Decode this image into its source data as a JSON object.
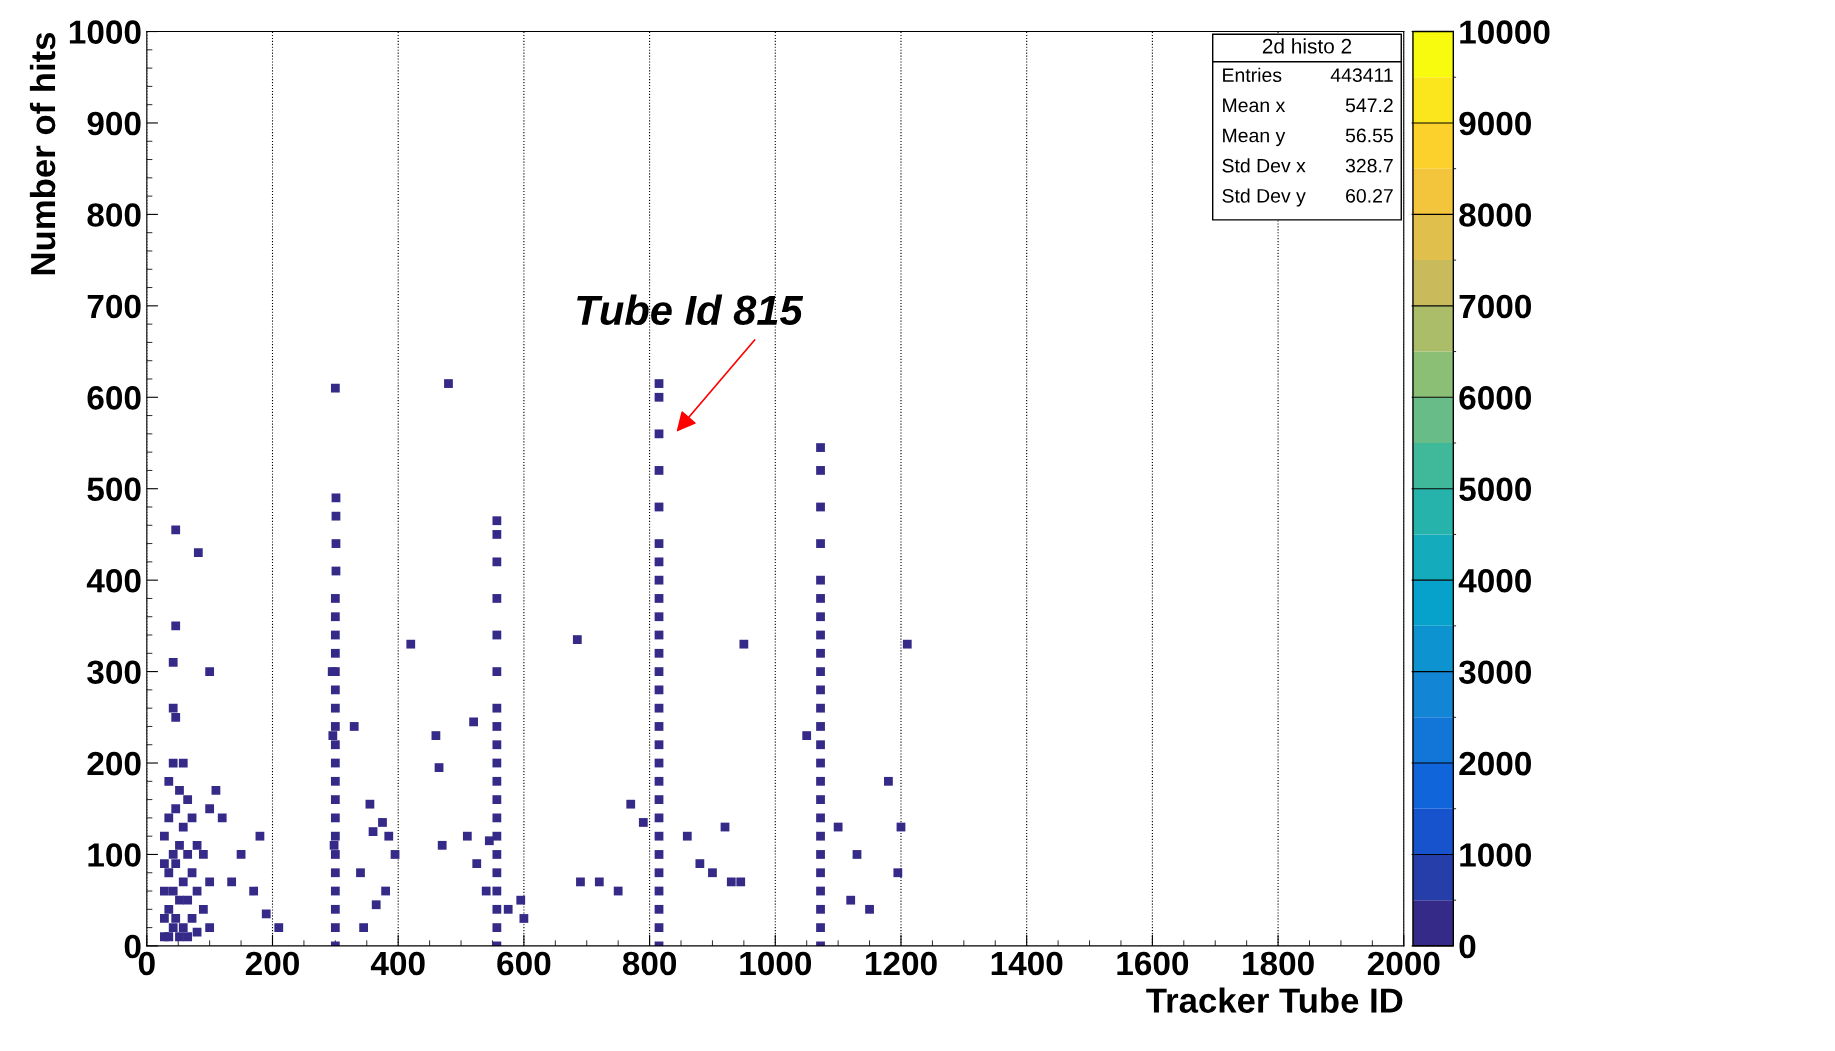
{
  "chart_data": {
    "type": "scatter",
    "xlabel": "Tracker Tube ID",
    "ylabel": "Number of hits",
    "xlim": [
      0,
      2000
    ],
    "xticks": [
      0,
      200,
      400,
      600,
      800,
      1000,
      1200,
      1400,
      1600,
      1800,
      2000
    ],
    "ylim": [
      0,
      1000
    ],
    "yticks": [
      0,
      100,
      200,
      300,
      400,
      500,
      600,
      700,
      800,
      900,
      1000
    ],
    "clim": [
      0,
      10000
    ],
    "cticks": [
      0,
      1000,
      2000,
      3000,
      4000,
      5000,
      6000,
      7000,
      8000,
      9000,
      10000
    ],
    "grid": "x",
    "marker": "square",
    "annotations": [
      "2d histo 2",
      "Entries",
      "443411",
      "Mean x",
      "547.2",
      "Mean y",
      "56.55",
      "Std Dev x",
      "328.7",
      "Std Dev y",
      "60.27",
      "Tube Id 815"
    ],
    "series": [
      {
        "x": [
          300,
          300,
          300,
          300,
          300,
          300,
          300,
          300,
          300,
          300,
          300,
          300,
          300,
          300,
          300,
          300,
          300,
          300,
          300,
          300,
          301,
          301,
          301,
          301
        ],
        "values": [
          0,
          20,
          40,
          60,
          80,
          100,
          120,
          140,
          160,
          180,
          200,
          220,
          240,
          260,
          280,
          300,
          320,
          340,
          360,
          380,
          410,
          440,
          470,
          490
        ]
      },
      {
        "x": [
          557,
          557,
          557,
          557,
          557,
          557,
          557,
          557,
          557,
          557,
          557,
          557,
          557,
          557,
          557,
          557,
          557,
          557,
          557,
          557
        ],
        "values": [
          0,
          20,
          40,
          60,
          80,
          100,
          120,
          140,
          160,
          180,
          200,
          220,
          240,
          260,
          300,
          340,
          380,
          420,
          450,
          465
        ]
      },
      {
        "x": [
          815,
          815,
          815,
          815,
          815,
          815,
          815,
          815,
          815,
          815,
          815,
          815,
          815,
          815,
          815,
          815,
          815,
          815,
          815,
          815,
          815,
          815,
          815,
          815,
          815,
          815,
          815,
          815
        ],
        "values": [
          0,
          20,
          40,
          60,
          80,
          100,
          120,
          140,
          160,
          180,
          200,
          220,
          240,
          260,
          280,
          300,
          320,
          340,
          360,
          380,
          400,
          420,
          440,
          480,
          520,
          560,
          600,
          615
        ]
      },
      {
        "x": [
          1072,
          1072,
          1072,
          1072,
          1072,
          1072,
          1072,
          1072,
          1072,
          1072,
          1072,
          1072,
          1072,
          1072,
          1072,
          1072,
          1072,
          1072,
          1072,
          1072,
          1072,
          1072,
          1072,
          1072,
          1072
        ],
        "values": [
          0,
          20,
          40,
          60,
          80,
          100,
          120,
          140,
          160,
          180,
          200,
          220,
          240,
          260,
          280,
          300,
          320,
          340,
          360,
          380,
          400,
          440,
          480,
          520,
          545
        ]
      },
      {
        "x": [
          28,
          28,
          28,
          28,
          28,
          35,
          35,
          35,
          35,
          35,
          42,
          42,
          42,
          42,
          42,
          42,
          46,
          46,
          46,
          46,
          46,
          46,
          52,
          52,
          52,
          52,
          58,
          58,
          58,
          58,
          65,
          65,
          65,
          65,
          72,
          72,
          72,
          80,
          80,
          80,
          90,
          90,
          100,
          100,
          100
        ],
        "values": [
          10,
          30,
          60,
          90,
          120,
          10,
          40,
          80,
          140,
          180,
          20,
          60,
          100,
          200,
          260,
          310,
          30,
          90,
          150,
          250,
          350,
          455,
          10,
          50,
          110,
          170,
          20,
          70,
          130,
          200,
          10,
          50,
          100,
          160,
          30,
          80,
          140,
          15,
          60,
          110,
          40,
          100,
          20,
          70,
          150
        ]
      },
      {
        "x": [
          295,
          296,
          298,
          340,
          345,
          355,
          360,
          365,
          375,
          380,
          385,
          395,
          420,
          330,
          460,
          465,
          470,
          510,
          525,
          540,
          545,
          575,
          595,
          600,
          685,
          520,
          690,
          720,
          750,
          770,
          790,
          860,
          880,
          900,
          920,
          930,
          950,
          945,
          1050,
          1100,
          1120,
          1130,
          1150,
          1180,
          1195,
          1200,
          1210,
          480,
          300,
          82,
          100,
          110,
          120,
          135,
          150,
          170,
          180,
          190,
          210
        ],
        "values": [
          300,
          230,
          110,
          80,
          20,
          155,
          125,
          45,
          135,
          60,
          120,
          100,
          330,
          240,
          230,
          195,
          110,
          120,
          90,
          60,
          115,
          40,
          50,
          30,
          335,
          245,
          70,
          70,
          60,
          155,
          135,
          120,
          90,
          80,
          130,
          70,
          330,
          70,
          230,
          130,
          50,
          100,
          40,
          180,
          80,
          130,
          330,
          615,
          610,
          430,
          300,
          170,
          140,
          70,
          100,
          60,
          120,
          35,
          20
        ]
      }
    ]
  }
}
